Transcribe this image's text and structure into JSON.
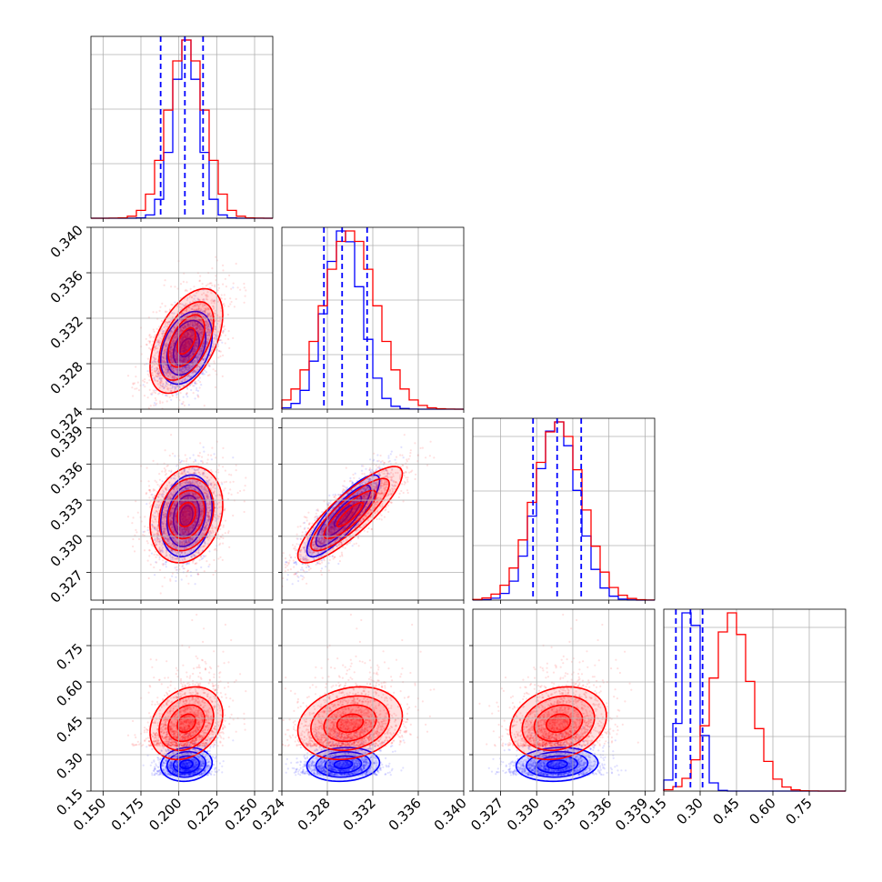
{
  "colors": {
    "series_a": "#0000ff",
    "series_b": "#ff0000",
    "quantile_line": "#0000ff",
    "grid": "#b0b0b0"
  },
  "chart_data": {
    "type": "corner",
    "grid": true,
    "n_params": 4,
    "series": [
      {
        "color": "#0000ff",
        "means": [
          0.205,
          0.3294,
          0.3317,
          0.26
        ],
        "sds": [
          0.0085,
          0.0016,
          0.0017,
          0.035
        ]
      },
      {
        "color": "#ff0000",
        "means": [
          0.205,
          0.33,
          0.3318,
          0.43
        ],
        "sds": [
          0.012,
          0.0023,
          0.002,
          0.075
        ]
      }
    ],
    "quantiles": {
      "color": "#0000ff",
      "style": "dashed",
      "values": [
        [
          0.188,
          0.204,
          0.216
        ],
        [
          0.3277,
          0.3293,
          0.3315
        ],
        [
          0.3297,
          0.3317,
          0.3337
        ],
        [
          0.2,
          0.26,
          0.31
        ]
      ]
    },
    "axis_ranges": [
      [
        0.142,
        0.262
      ],
      [
        0.324,
        0.34
      ],
      [
        0.3247,
        0.3398
      ],
      [
        0.15,
        0.9
      ]
    ],
    "tick_labels": [
      [
        "0.150",
        "0.175",
        "0.200",
        "0.225",
        "0.250"
      ],
      [
        "0.324",
        "0.328",
        "0.332",
        "0.336",
        "0.340"
      ],
      [
        "0.327",
        "0.330",
        "0.333",
        "0.336",
        "0.339"
      ],
      [
        "0.15",
        "0.30",
        "0.45",
        "0.60",
        "0.75"
      ]
    ],
    "tick_values": [
      [
        0.15,
        0.175,
        0.2,
        0.225,
        0.25
      ],
      [
        0.324,
        0.328,
        0.332,
        0.336,
        0.34
      ],
      [
        0.327,
        0.33,
        0.333,
        0.336,
        0.339
      ],
      [
        0.15,
        0.3,
        0.45,
        0.6,
        0.75
      ]
    ]
  }
}
